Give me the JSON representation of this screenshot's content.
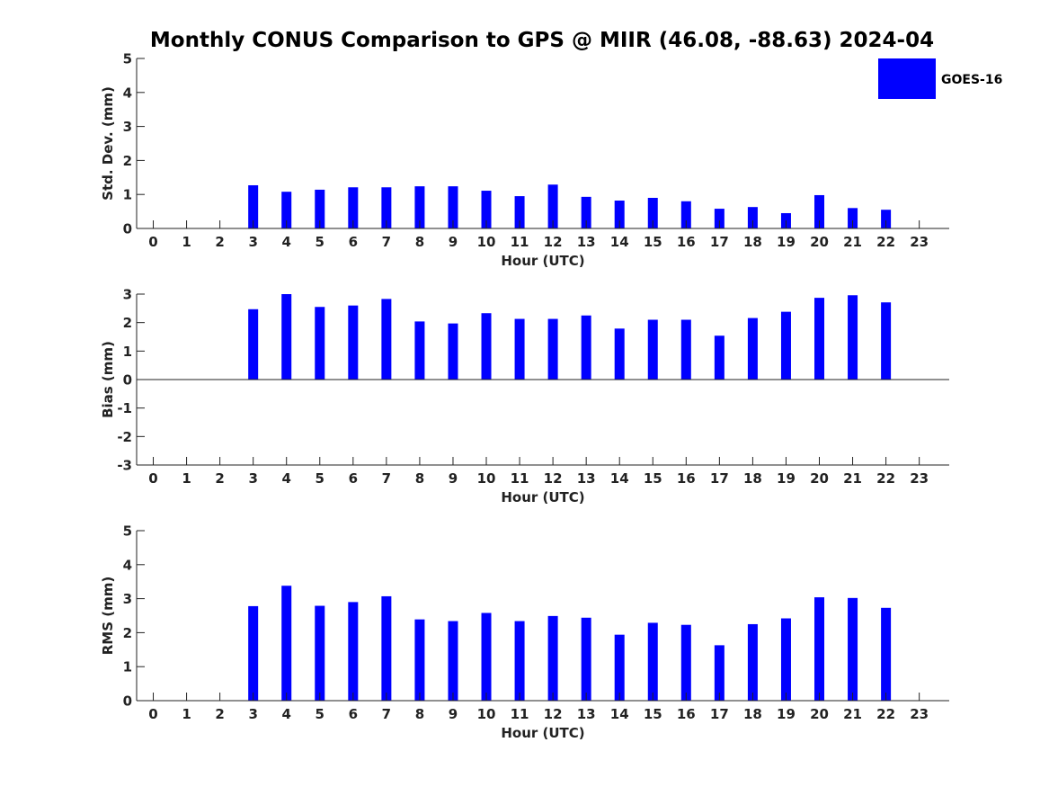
{
  "title": "Monthly CONUS Comparison to GPS @ MIIR (46.08, -88.63) 2024-04",
  "legend": {
    "label": "GOES-16",
    "placement": "top-right",
    "color": "#0000ff"
  },
  "colors": {
    "bar": "#0000ff",
    "axis": "#222222",
    "text": "#222222"
  },
  "chart_data": [
    {
      "type": "bar",
      "name": "std-dev",
      "xlabel": "Hour (UTC)",
      "ylabel": "Std. Dev. (mm)",
      "xlim": [
        -0.5,
        23.9
      ],
      "ylim": [
        0,
        5
      ],
      "yticks": [
        "0",
        "1",
        "2",
        "3",
        "4",
        "5"
      ],
      "grid": false,
      "categories": [
        "0",
        "1",
        "2",
        "3",
        "4",
        "5",
        "6",
        "7",
        "8",
        "9",
        "10",
        "11",
        "12",
        "13",
        "14",
        "15",
        "16",
        "17",
        "18",
        "19",
        "20",
        "21",
        "22",
        "23"
      ],
      "series": [
        {
          "name": "GOES-16",
          "values": [
            null,
            null,
            null,
            1.27,
            1.08,
            1.14,
            1.21,
            1.21,
            1.24,
            1.24,
            1.11,
            0.95,
            1.29,
            0.93,
            0.82,
            0.9,
            0.8,
            0.58,
            0.63,
            0.45,
            0.98,
            0.6,
            0.55,
            null
          ]
        }
      ]
    },
    {
      "type": "bar",
      "name": "bias",
      "xlabel": "Hour (UTC)",
      "ylabel": "Bias (mm)",
      "xlim": [
        -0.5,
        23.9
      ],
      "ylim": [
        -3,
        3
      ],
      "yticks": [
        "-3",
        "-2",
        "-1",
        "0",
        "1",
        "2",
        "3"
      ],
      "grid": false,
      "categories": [
        "0",
        "1",
        "2",
        "3",
        "4",
        "5",
        "6",
        "7",
        "8",
        "9",
        "10",
        "11",
        "12",
        "13",
        "14",
        "15",
        "16",
        "17",
        "18",
        "19",
        "20",
        "21",
        "22",
        "23"
      ],
      "series": [
        {
          "name": "GOES-16",
          "values": [
            null,
            null,
            null,
            2.47,
            3.0,
            2.55,
            2.6,
            2.83,
            2.04,
            1.97,
            2.33,
            2.13,
            2.13,
            2.25,
            1.79,
            2.1,
            2.1,
            1.54,
            2.16,
            2.38,
            2.87,
            2.96,
            2.71,
            null
          ]
        }
      ]
    },
    {
      "type": "bar",
      "name": "rms",
      "xlabel": "Hour (UTC)",
      "ylabel": "RMS (mm)",
      "xlim": [
        -0.5,
        23.9
      ],
      "ylim": [
        0,
        5
      ],
      "yticks": [
        "0",
        "1",
        "2",
        "3",
        "4",
        "5"
      ],
      "grid": false,
      "categories": [
        "0",
        "1",
        "2",
        "3",
        "4",
        "5",
        "6",
        "7",
        "8",
        "9",
        "10",
        "11",
        "12",
        "13",
        "14",
        "15",
        "16",
        "17",
        "18",
        "19",
        "20",
        "21",
        "22",
        "23"
      ],
      "series": [
        {
          "name": "GOES-16",
          "values": [
            null,
            null,
            null,
            2.78,
            3.38,
            2.79,
            2.9,
            3.07,
            2.39,
            2.34,
            2.58,
            2.34,
            2.49,
            2.44,
            1.94,
            2.29,
            2.23,
            1.63,
            2.25,
            2.42,
            3.04,
            3.02,
            2.73,
            null
          ]
        }
      ]
    }
  ]
}
